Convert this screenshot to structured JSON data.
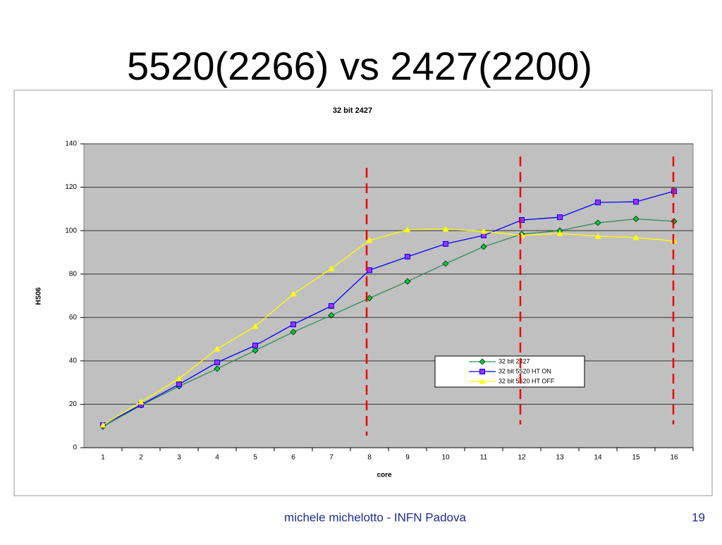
{
  "slide": {
    "title": "5520(2266) vs 2427(2200)",
    "footer": "michele michelotto - INFN Padova",
    "page_number": "19"
  },
  "chart_data": {
    "type": "line",
    "title": "32 bit  2427",
    "x_label": "core",
    "y_label": "HS06",
    "categories": [
      "1",
      "2",
      "3",
      "4",
      "5",
      "6",
      "7",
      "8",
      "9",
      "10",
      "11",
      "12",
      "13",
      "14",
      "15",
      "16"
    ],
    "series": [
      {
        "name": "32 bit 2427",
        "color": "#2e8b57",
        "marker": "diamond",
        "marker_color": "#00cc33",
        "values": [
          9.7,
          19.5,
          28.3,
          36.4,
          44.8,
          53.3,
          61,
          68.9,
          76.6,
          84.8,
          92.6,
          98.4,
          100,
          103.6,
          105.4,
          104.3
        ]
      },
      {
        "name": "32 bit 5520 HT ON",
        "color": "#0000ff",
        "marker": "square",
        "marker_color": "#9933ff",
        "values": [
          10.4,
          19.8,
          29.2,
          39.3,
          47.1,
          56.8,
          65.3,
          81.8,
          88,
          93.9,
          97.8,
          104.9,
          106.2,
          113,
          113.3,
          118.2
        ]
      },
      {
        "name": "32 bit 5520 HT OFF",
        "color": "#ffff00",
        "marker": "triangle",
        "marker_color": "#ffff00",
        "values": [
          10.4,
          21.1,
          31.8,
          45.5,
          55.9,
          70.8,
          82.5,
          95.5,
          100.4,
          100.7,
          99.7,
          97.8,
          98.7,
          97.4,
          96.8,
          95.2
        ]
      }
    ],
    "ylim": [
      0,
      140
    ],
    "yticks": [
      0,
      20,
      40,
      60,
      80,
      100,
      120,
      140
    ],
    "grid": true,
    "legend": "lower-right",
    "plot_background": "#c0c0c0"
  }
}
